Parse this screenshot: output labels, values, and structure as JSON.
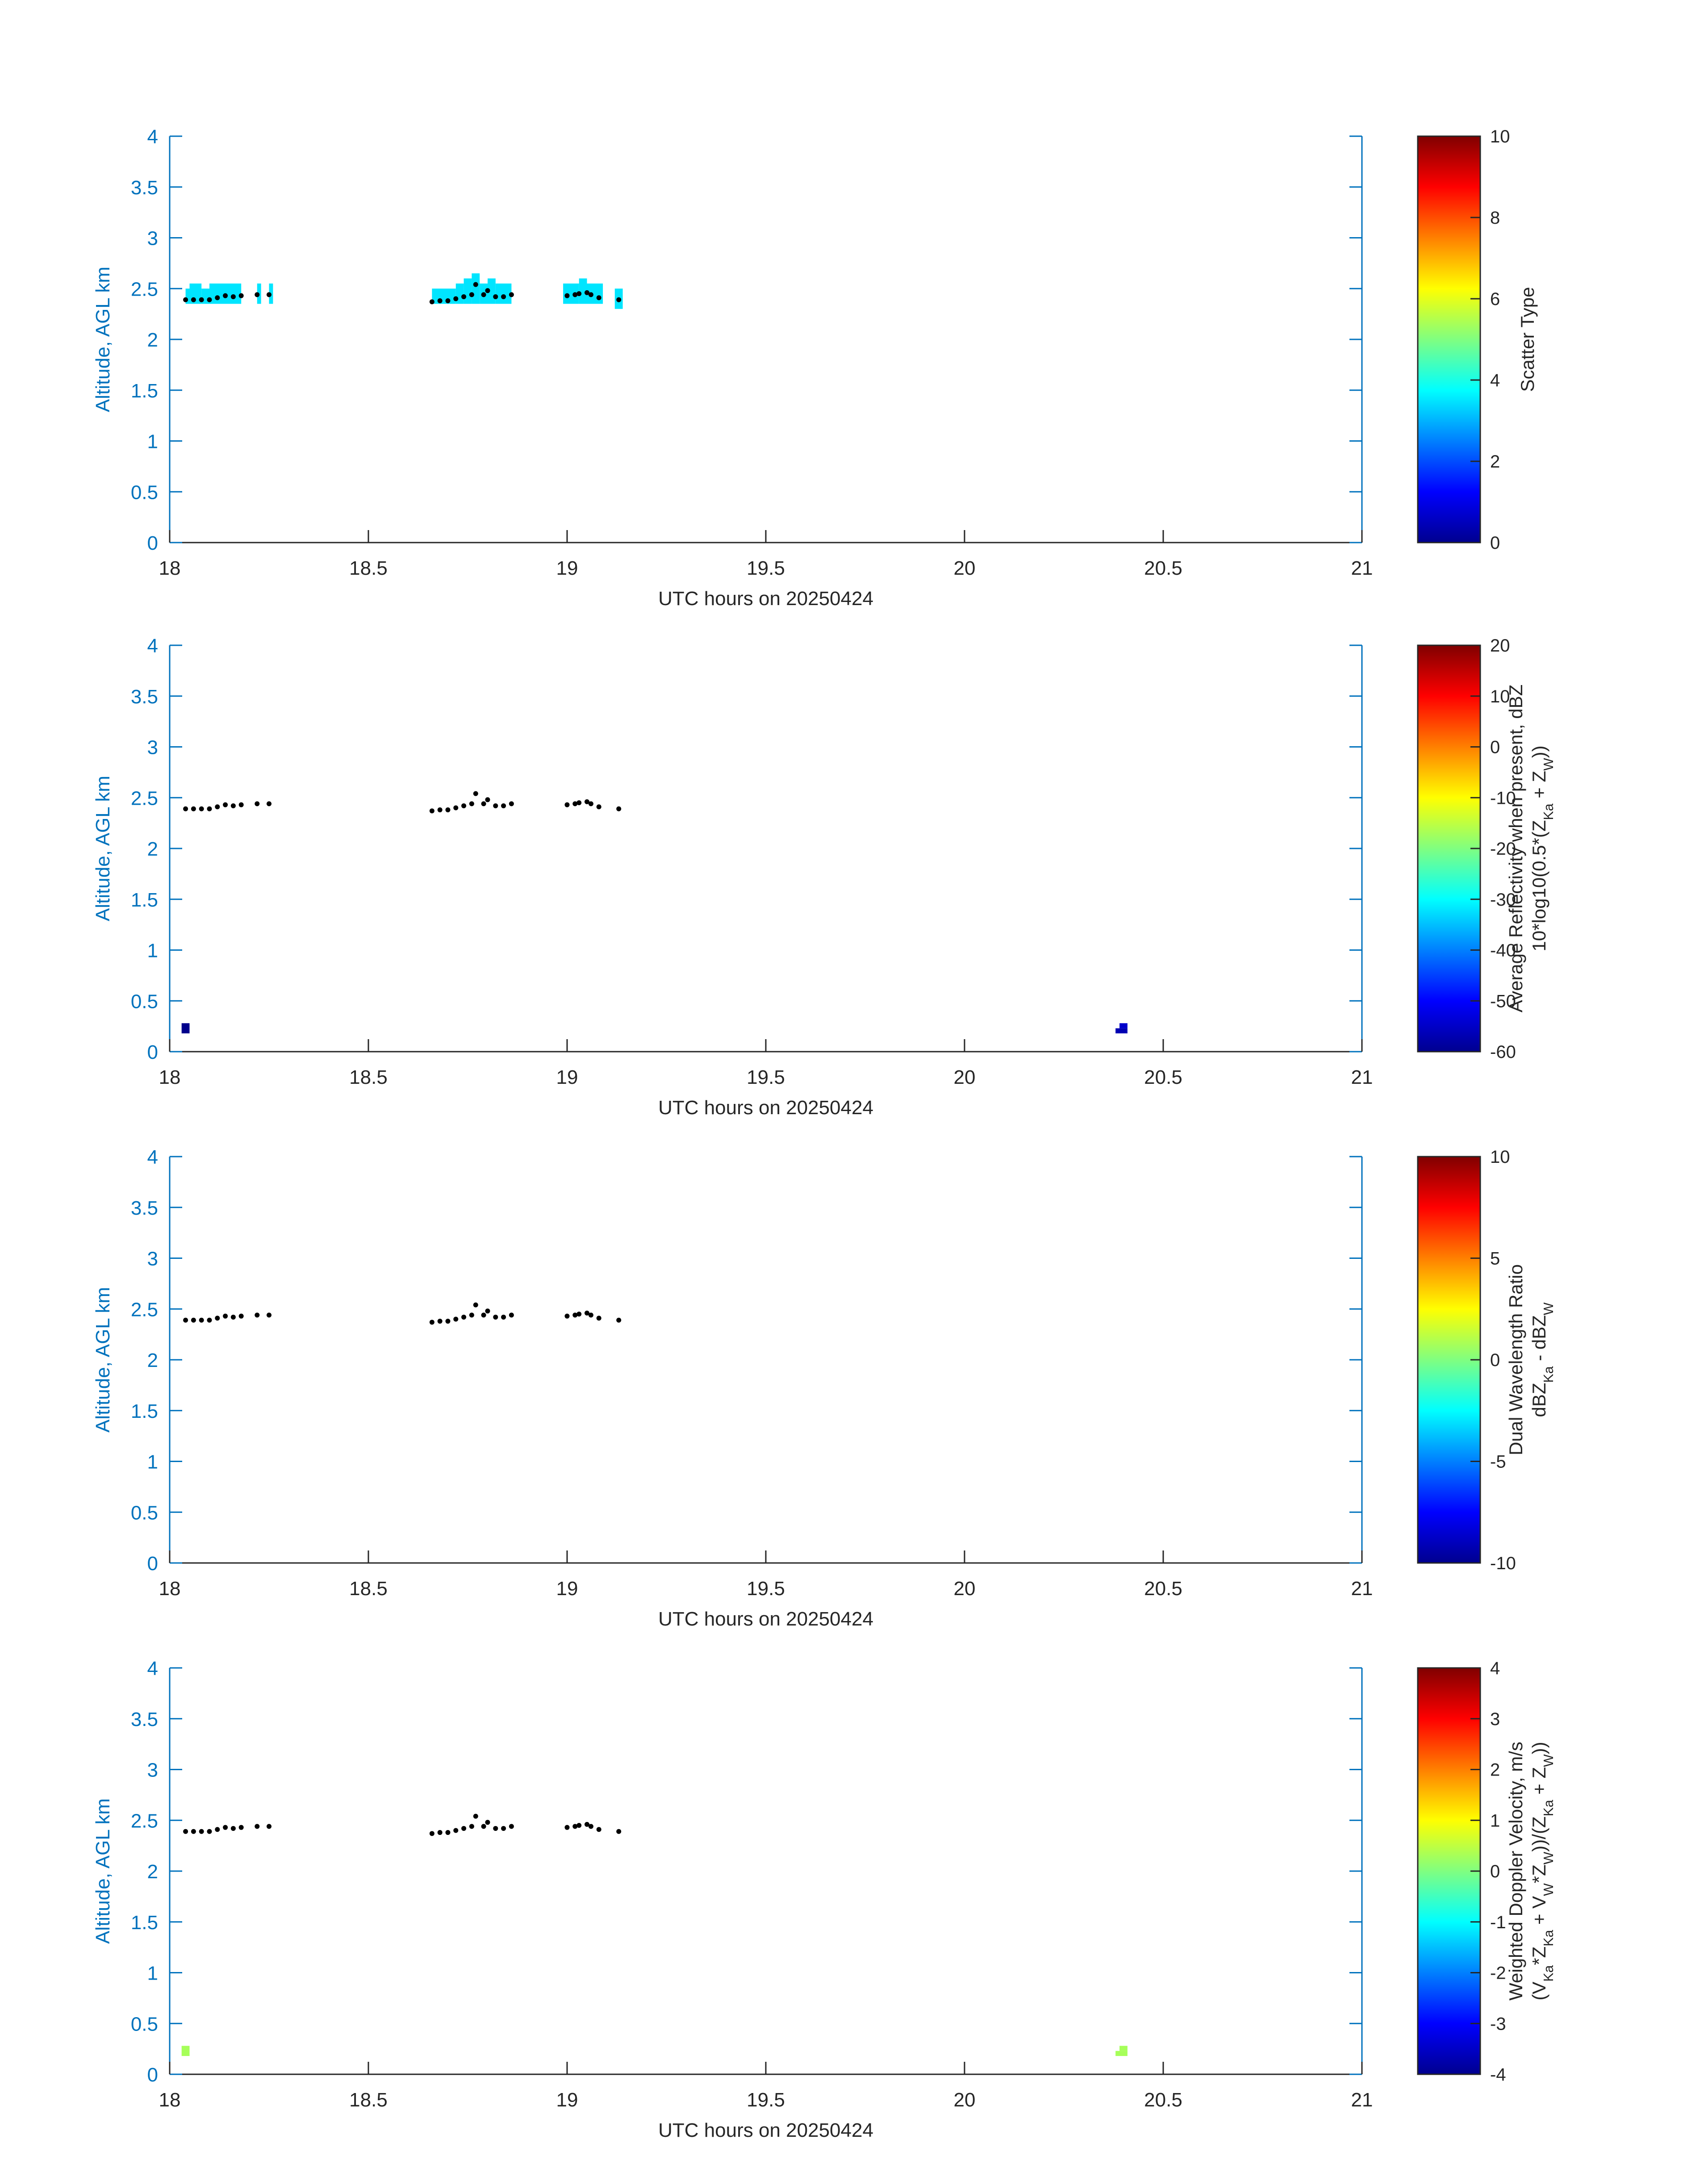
{
  "chart_data": [
    {
      "type": "heatmap",
      "xlabel": "UTC hours on 20250424",
      "ylabel": "Altitude, AGL km",
      "xlim": [
        18,
        21
      ],
      "ylim": [
        0,
        4
      ],
      "xticks": [
        18,
        18.5,
        19,
        19.5,
        20,
        20.5,
        21
      ],
      "yticks": [
        0,
        0.5,
        1,
        1.5,
        2,
        2.5,
        3,
        3.5,
        4
      ],
      "colorbar": {
        "label": [
          "Scatter Type"
        ],
        "range": [
          0,
          10
        ],
        "ticks": [
          0,
          2,
          4,
          6,
          8,
          10
        ],
        "colormap": "jet"
      },
      "cells": [
        {
          "x": [
            18.04,
            18.05
          ],
          "y": [
            2.35,
            2.5
          ],
          "value": 3.5
        },
        {
          "x": [
            18.05,
            18.08
          ],
          "y": [
            2.35,
            2.55
          ],
          "value": 3.5
        },
        {
          "x": [
            18.08,
            18.1
          ],
          "y": [
            2.35,
            2.5
          ],
          "value": 3.5
        },
        {
          "x": [
            18.1,
            18.18
          ],
          "y": [
            2.35,
            2.55
          ],
          "value": 3.5
        },
        {
          "x": [
            18.22,
            18.23
          ],
          "y": [
            2.35,
            2.55
          ],
          "value": 3.5
        },
        {
          "x": [
            18.25,
            18.26
          ],
          "y": [
            2.35,
            2.55
          ],
          "value": 3.5
        },
        {
          "x": [
            18.66,
            18.72
          ],
          "y": [
            2.35,
            2.5
          ],
          "value": 3.5
        },
        {
          "x": [
            18.72,
            18.74
          ],
          "y": [
            2.35,
            2.55
          ],
          "value": 3.5
        },
        {
          "x": [
            18.74,
            18.76
          ],
          "y": [
            2.35,
            2.6
          ],
          "value": 3.5
        },
        {
          "x": [
            18.76,
            18.78
          ],
          "y": [
            2.35,
            2.65
          ],
          "value": 3.5
        },
        {
          "x": [
            18.78,
            18.8
          ],
          "y": [
            2.35,
            2.55
          ],
          "value": 3.5
        },
        {
          "x": [
            18.8,
            18.82
          ],
          "y": [
            2.35,
            2.6
          ],
          "value": 3.5
        },
        {
          "x": [
            18.82,
            18.86
          ],
          "y": [
            2.35,
            2.55
          ],
          "value": 3.5
        },
        {
          "x": [
            18.99,
            19.03
          ],
          "y": [
            2.35,
            2.55
          ],
          "value": 3.5
        },
        {
          "x": [
            19.03,
            19.05
          ],
          "y": [
            2.35,
            2.6
          ],
          "value": 3.5
        },
        {
          "x": [
            19.05,
            19.09
          ],
          "y": [
            2.35,
            2.55
          ],
          "value": 3.5
        },
        {
          "x": [
            19.12,
            19.14
          ],
          "y": [
            2.3,
            2.5
          ],
          "value": 3.5
        }
      ],
      "points": {
        "x": [
          18.04,
          18.06,
          18.08,
          18.1,
          18.12,
          18.14,
          18.16,
          18.18,
          18.22,
          18.25,
          18.66,
          18.68,
          18.7,
          18.72,
          18.74,
          18.76,
          18.77,
          18.79,
          18.8,
          18.82,
          18.84,
          18.86,
          19.0,
          19.02,
          19.03,
          19.05,
          19.06,
          19.08,
          19.13
        ],
        "y": [
          2.39,
          2.39,
          2.39,
          2.39,
          2.41,
          2.43,
          2.42,
          2.43,
          2.44,
          2.44,
          2.37,
          2.38,
          2.38,
          2.4,
          2.42,
          2.44,
          2.54,
          2.44,
          2.48,
          2.42,
          2.42,
          2.44,
          2.43,
          2.44,
          2.45,
          2.46,
          2.44,
          2.41,
          2.39
        ]
      }
    },
    {
      "type": "heatmap",
      "xlabel": "UTC hours on 20250424",
      "ylabel": "Altitude, AGL km",
      "xlim": [
        18,
        21
      ],
      "ylim": [
        0,
        4
      ],
      "xticks": [
        18,
        18.5,
        19,
        19.5,
        20,
        20.5,
        21
      ],
      "yticks": [
        0,
        0.5,
        1,
        1.5,
        2,
        2.5,
        3,
        3.5,
        4
      ],
      "colorbar": {
        "label": [
          "Average Reflectivity when present, dBZ",
          "10*log10(0.5*(Z_Ka + Z_W))"
        ],
        "range": [
          -60,
          20
        ],
        "ticks": [
          -60,
          -50,
          -40,
          -30,
          -20,
          -10,
          0,
          10,
          20
        ],
        "colormap": "jet"
      },
      "cells": [
        {
          "x": [
            18.03,
            18.05
          ],
          "y": [
            0.18,
            0.28
          ],
          "value": -59
        },
        {
          "x": [
            20.38,
            20.41
          ],
          "y": [
            0.18,
            0.23
          ],
          "value": -56
        },
        {
          "x": [
            20.39,
            20.41
          ],
          "y": [
            0.23,
            0.28
          ],
          "value": -54
        }
      ],
      "points": {
        "x": [
          18.04,
          18.06,
          18.08,
          18.1,
          18.12,
          18.14,
          18.16,
          18.18,
          18.22,
          18.25,
          18.66,
          18.68,
          18.7,
          18.72,
          18.74,
          18.76,
          18.77,
          18.79,
          18.8,
          18.82,
          18.84,
          18.86,
          19.0,
          19.02,
          19.03,
          19.05,
          19.06,
          19.08,
          19.13
        ],
        "y": [
          2.39,
          2.39,
          2.39,
          2.39,
          2.41,
          2.43,
          2.42,
          2.43,
          2.44,
          2.44,
          2.37,
          2.38,
          2.38,
          2.4,
          2.42,
          2.44,
          2.54,
          2.44,
          2.48,
          2.42,
          2.42,
          2.44,
          2.43,
          2.44,
          2.45,
          2.46,
          2.44,
          2.41,
          2.39
        ]
      }
    },
    {
      "type": "heatmap",
      "xlabel": "UTC hours on 20250424",
      "ylabel": "Altitude, AGL km",
      "xlim": [
        18,
        21
      ],
      "ylim": [
        0,
        4
      ],
      "xticks": [
        18,
        18.5,
        19,
        19.5,
        20,
        20.5,
        21
      ],
      "yticks": [
        0,
        0.5,
        1,
        1.5,
        2,
        2.5,
        3,
        3.5,
        4
      ],
      "colorbar": {
        "label": [
          "Dual Wavelength Ratio",
          "dBZ_Ka - dBZ_W"
        ],
        "range": [
          -10,
          10
        ],
        "ticks": [
          -10,
          -5,
          0,
          5,
          10
        ],
        "colormap": "jet"
      },
      "cells": [],
      "points": {
        "x": [
          18.04,
          18.06,
          18.08,
          18.1,
          18.12,
          18.14,
          18.16,
          18.18,
          18.22,
          18.25,
          18.66,
          18.68,
          18.7,
          18.72,
          18.74,
          18.76,
          18.77,
          18.79,
          18.8,
          18.82,
          18.84,
          18.86,
          19.0,
          19.02,
          19.03,
          19.05,
          19.06,
          19.08,
          19.13
        ],
        "y": [
          2.39,
          2.39,
          2.39,
          2.39,
          2.41,
          2.43,
          2.42,
          2.43,
          2.44,
          2.44,
          2.37,
          2.38,
          2.38,
          2.4,
          2.42,
          2.44,
          2.54,
          2.44,
          2.48,
          2.42,
          2.42,
          2.44,
          2.43,
          2.44,
          2.45,
          2.46,
          2.44,
          2.41,
          2.39
        ]
      }
    },
    {
      "type": "heatmap",
      "xlabel": "UTC hours on 20250424",
      "ylabel": "Altitude, AGL km",
      "xlim": [
        18,
        21
      ],
      "ylim": [
        0,
        4
      ],
      "xticks": [
        18,
        18.5,
        19,
        19.5,
        20,
        20.5,
        21
      ],
      "yticks": [
        0,
        0.5,
        1,
        1.5,
        2,
        2.5,
        3,
        3.5,
        4
      ],
      "colorbar": {
        "label": [
          "Weighted Doppler Velocity, m/s",
          "(V_Ka*Z_Ka + V_W*Z_W))/(Z_Ka + Z_W))"
        ],
        "range": [
          -4,
          4
        ],
        "ticks": [
          -4,
          -3,
          -2,
          -1,
          0,
          1,
          2,
          3,
          4
        ],
        "colormap": "jet"
      },
      "cells": [
        {
          "x": [
            18.03,
            18.05
          ],
          "y": [
            0.18,
            0.28
          ],
          "value": 0.3
        },
        {
          "x": [
            20.38,
            20.41
          ],
          "y": [
            0.18,
            0.23
          ],
          "value": 0.3
        },
        {
          "x": [
            20.39,
            20.41
          ],
          "y": [
            0.23,
            0.28
          ],
          "value": 0.3
        }
      ],
      "points": {
        "x": [
          18.04,
          18.06,
          18.08,
          18.1,
          18.12,
          18.14,
          18.16,
          18.18,
          18.22,
          18.25,
          18.66,
          18.68,
          18.7,
          18.72,
          18.74,
          18.76,
          18.77,
          18.79,
          18.8,
          18.82,
          18.84,
          18.86,
          19.0,
          19.02,
          19.03,
          19.05,
          19.06,
          19.08,
          19.13
        ],
        "y": [
          2.39,
          2.39,
          2.39,
          2.39,
          2.41,
          2.43,
          2.42,
          2.43,
          2.44,
          2.44,
          2.37,
          2.38,
          2.38,
          2.4,
          2.42,
          2.44,
          2.54,
          2.44,
          2.48,
          2.42,
          2.42,
          2.44,
          2.43,
          2.44,
          2.45,
          2.46,
          2.44,
          2.41,
          2.39
        ]
      }
    }
  ]
}
